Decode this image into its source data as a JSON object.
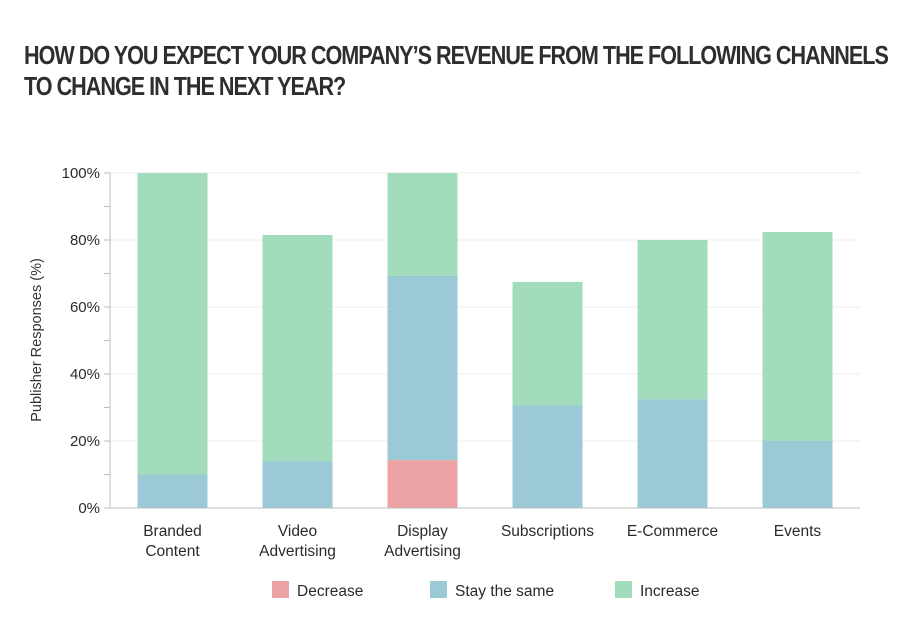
{
  "chart_data": {
    "type": "bar",
    "stacked": true,
    "title": "HOW DO YOU EXPECT YOUR COMPANY'S REVENUE FROM THE FOLLOWING CHANNELS TO CHANGE IN THE NEXT YEAR?",
    "title_lines": [
      "HOW DO YOU EXPECT YOUR COMPANY’S REVENUE FROM THE FOLLOWING CHANNELS",
      "TO CHANGE IN THE NEXT YEAR?"
    ],
    "xlabel": "",
    "ylabel": "Publisher Responses (%)",
    "ylim": [
      0,
      100
    ],
    "yticks": [
      0,
      20,
      40,
      60,
      80,
      100
    ],
    "ytick_labels": [
      "0%",
      "20%",
      "40%",
      "60%",
      "80%",
      "100%"
    ],
    "grid": true,
    "legend_position": "bottom",
    "categories": [
      "Branded Content",
      "Video Advertising",
      "Display Advertising",
      "Subscriptions",
      "E-Commerce",
      "Events"
    ],
    "category_lines": [
      [
        "Branded",
        "Content"
      ],
      [
        "Video",
        "Advertising"
      ],
      [
        "Display",
        "Advertising"
      ],
      [
        "Subscriptions"
      ],
      [
        "E-Commerce"
      ],
      [
        "Events"
      ]
    ],
    "series": [
      {
        "name": "Decrease",
        "color": "#eda3a3",
        "values": [
          0,
          0,
          14.3,
          0,
          0,
          0
        ]
      },
      {
        "name": "Stay the same",
        "color": "#9bc9d6",
        "values": [
          10,
          14,
          55,
          30.7,
          32.5,
          20
        ]
      },
      {
        "name": "Increase",
        "color": "#a3dcbc",
        "values": [
          90,
          67.5,
          30.7,
          36.8,
          47.5,
          62.4
        ]
      }
    ]
  }
}
